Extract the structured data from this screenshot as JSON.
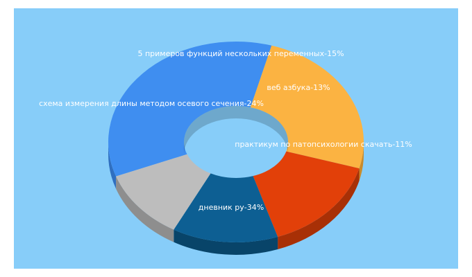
{
  "chart_data": {
    "type": "pie",
    "style": "3d-donut",
    "background": "#87cdf9",
    "slices": [
      {
        "label": "дневник ру",
        "value": 34,
        "text": "дневник ру-34%",
        "color": "#3f8ef0",
        "side": "#2f6fc0"
      },
      {
        "label": "схема измерения длины методом осевого сечения",
        "value": 24,
        "text": "схема измерения длины методом осевого сечения-24%",
        "color": "#fbb342",
        "side": "#c98a2a"
      },
      {
        "label": "5 примеров функций нескольких переменных",
        "value": 15,
        "text": "5 примеров функций нескольких переменных-15%",
        "color": "#e24009",
        "side": "#a83006"
      },
      {
        "label": "веб азбука",
        "value": 13,
        "text": "веб азбука-13%",
        "color": "#0d5f93",
        "side": "#084469"
      },
      {
        "label": "практикум по патопсихологии скачать",
        "value": 11,
        "text": "практикум по патопсихологии скачать-11%",
        "color": "#bdbdbd",
        "side": "#8e8e8e"
      }
    ]
  }
}
